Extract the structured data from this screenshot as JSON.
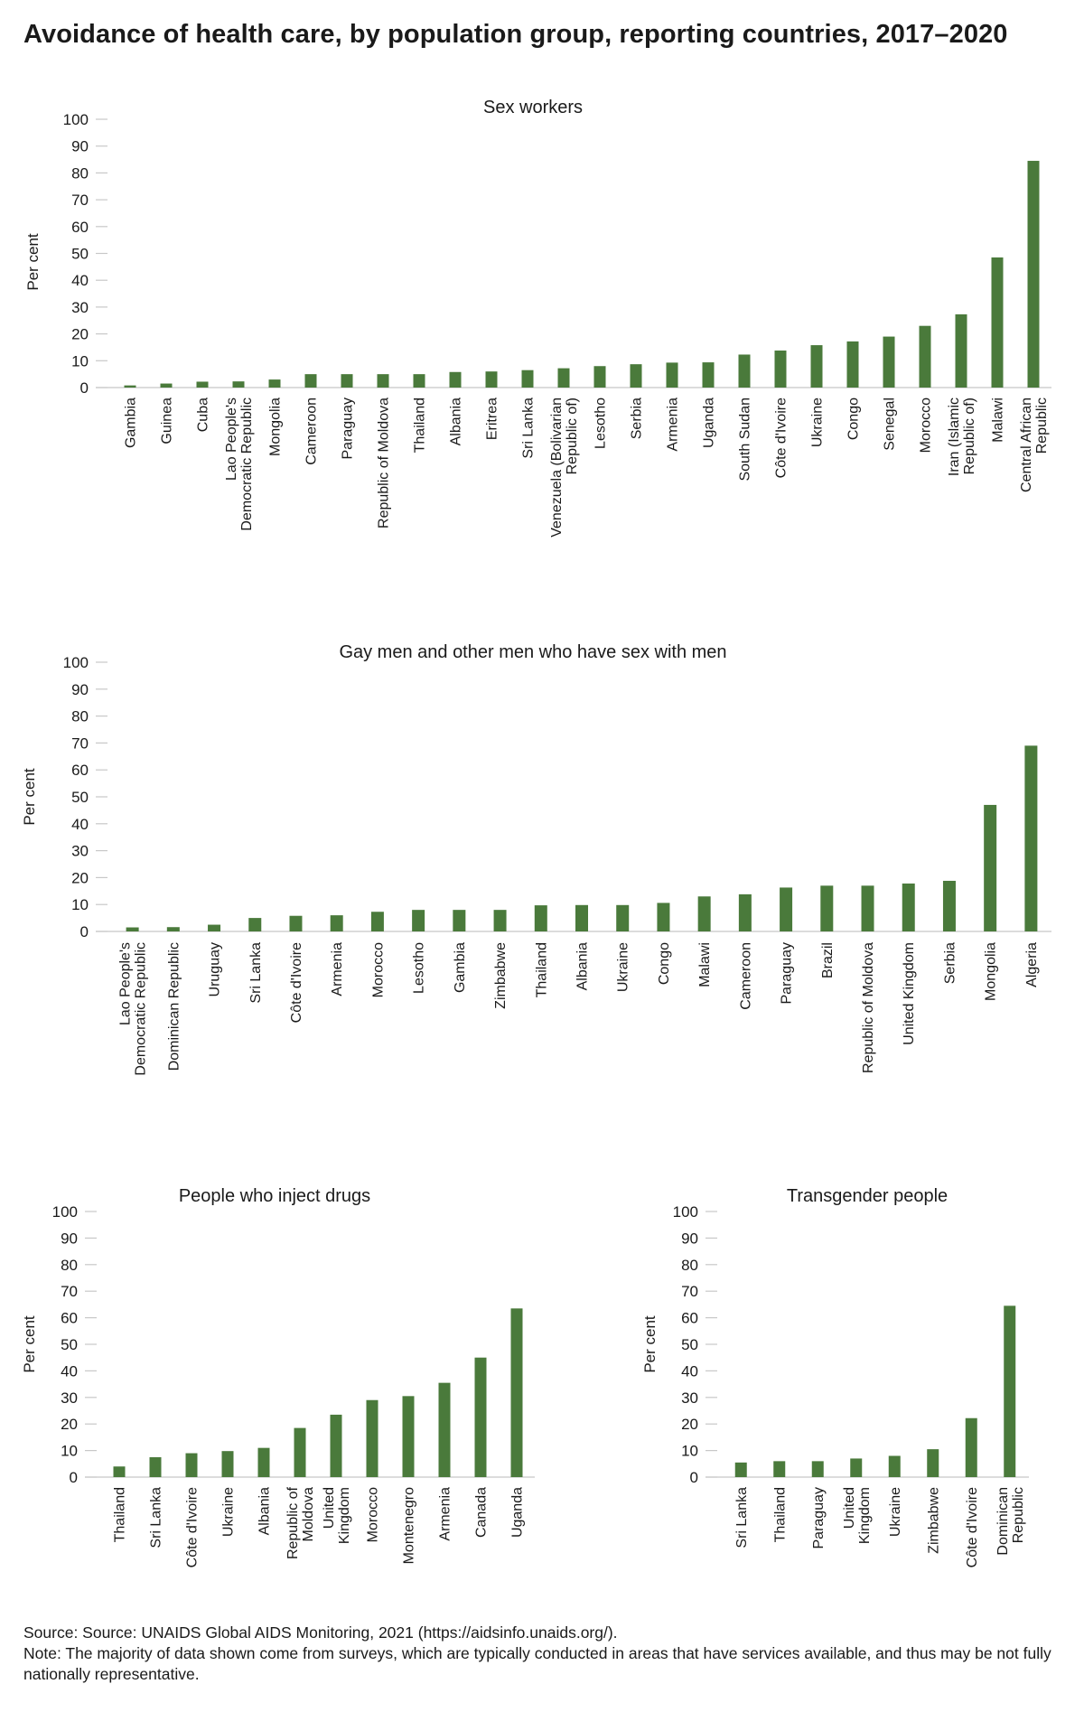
{
  "title": "Avoidance of health care, by population group, reporting countries, 2017–2020",
  "footer": {
    "source": "Source: Source: UNAIDS Global AIDS Monitoring, 2021 (https://aidsinfo.unaids.org/).",
    "note": "Note: The majority of data shown come from surveys, which are typically conducted in areas that have services available, and thus may be not fully nationally representative."
  },
  "colors": {
    "bar": "#4a7a3b",
    "grid": "#c8c8c8"
  },
  "chart_data": [
    {
      "type": "bar",
      "title": "Sex workers",
      "ylabel": "Per cent",
      "ylim": [
        0,
        100
      ],
      "yticks": [
        0,
        10,
        20,
        30,
        40,
        50,
        60,
        70,
        80,
        90,
        100
      ],
      "categories": [
        "Gambia",
        "Guinea",
        "Cuba",
        "Lao People's|Democratic Republic",
        "Mongolia",
        "Cameroon",
        "Paraguay",
        "Republic of Moldova",
        "Thailand",
        "Albania",
        "Eritrea",
        "Sri Lanka",
        "Venezuela (Bolivarian|Republic of)",
        "Lesotho",
        "Serbia",
        "Armenia",
        "Uganda",
        "South Sudan",
        "Côte d'Ivoire",
        "Ukraine",
        "Congo",
        "Senegal",
        "Morocco",
        "Iran (Islamic|Republic of)",
        "Malawi",
        "Central African|Republic"
      ],
      "values": [
        0.8,
        1.5,
        2.2,
        2.3,
        3.0,
        5.0,
        5.0,
        5.0,
        5.0,
        5.8,
        6.0,
        6.5,
        7.2,
        8.0,
        8.7,
        9.3,
        9.4,
        12.3,
        13.8,
        15.8,
        17.2,
        19.0,
        23.0,
        27.3,
        48.5,
        84.5
      ]
    },
    {
      "type": "bar",
      "title": "Gay men and other men who have sex with men",
      "ylabel": "Per cent",
      "ylim": [
        0,
        100
      ],
      "yticks": [
        0,
        10,
        20,
        30,
        40,
        50,
        60,
        70,
        80,
        90,
        100
      ],
      "categories": [
        "Lao People's|Democratic Republic",
        "Dominican Republic",
        "Uruguay",
        "Sri Lanka",
        "Côte d'Ivoire",
        "Armenia",
        "Morocco",
        "Lesotho",
        "Gambia",
        "Zimbabwe",
        "Thailand",
        "Albania",
        "Ukraine",
        "Congo",
        "Malawi",
        "Cameroon",
        "Paraguay",
        "Brazil",
        "Republic of Moldova",
        "United Kingdom",
        "Serbia",
        "Mongolia",
        "Algeria"
      ],
      "values": [
        1.5,
        1.6,
        2.5,
        5.0,
        5.8,
        6.0,
        7.3,
        8.0,
        8.0,
        8.0,
        9.7,
        9.8,
        9.8,
        10.6,
        13.0,
        13.8,
        16.3,
        17.0,
        17.0,
        17.8,
        18.8,
        47.0,
        69.0
      ]
    },
    {
      "type": "bar",
      "title": "People who inject drugs",
      "ylabel": "Per cent",
      "ylim": [
        0,
        100
      ],
      "yticks": [
        0,
        10,
        20,
        30,
        40,
        50,
        60,
        70,
        80,
        90,
        100
      ],
      "categories": [
        "Thailand",
        "Sri Lanka",
        "Côte d'Ivoire",
        "Ukraine",
        "Albania",
        "Republic of|Moldova",
        "United|Kingdom",
        "Morocco",
        "Montenegro",
        "Armenia",
        "Canada",
        "Uganda"
      ],
      "values": [
        4.0,
        7.5,
        9.0,
        9.8,
        11.0,
        18.5,
        23.5,
        29.0,
        30.5,
        35.5,
        45.0,
        63.5
      ]
    },
    {
      "type": "bar",
      "title": "Transgender people",
      "ylabel": "Per cent",
      "ylim": [
        0,
        100
      ],
      "yticks": [
        0,
        10,
        20,
        30,
        40,
        50,
        60,
        70,
        80,
        90,
        100
      ],
      "categories": [
        "Sri Lanka",
        "Thailand",
        "Paraguay",
        "United|Kingdom",
        "Ukraine",
        "Zimbabwe",
        "Côte d'Ivoire",
        "Dominican|Republic"
      ],
      "values": [
        5.5,
        6.0,
        6.0,
        7.0,
        8.0,
        10.5,
        22.2,
        64.5
      ]
    }
  ]
}
